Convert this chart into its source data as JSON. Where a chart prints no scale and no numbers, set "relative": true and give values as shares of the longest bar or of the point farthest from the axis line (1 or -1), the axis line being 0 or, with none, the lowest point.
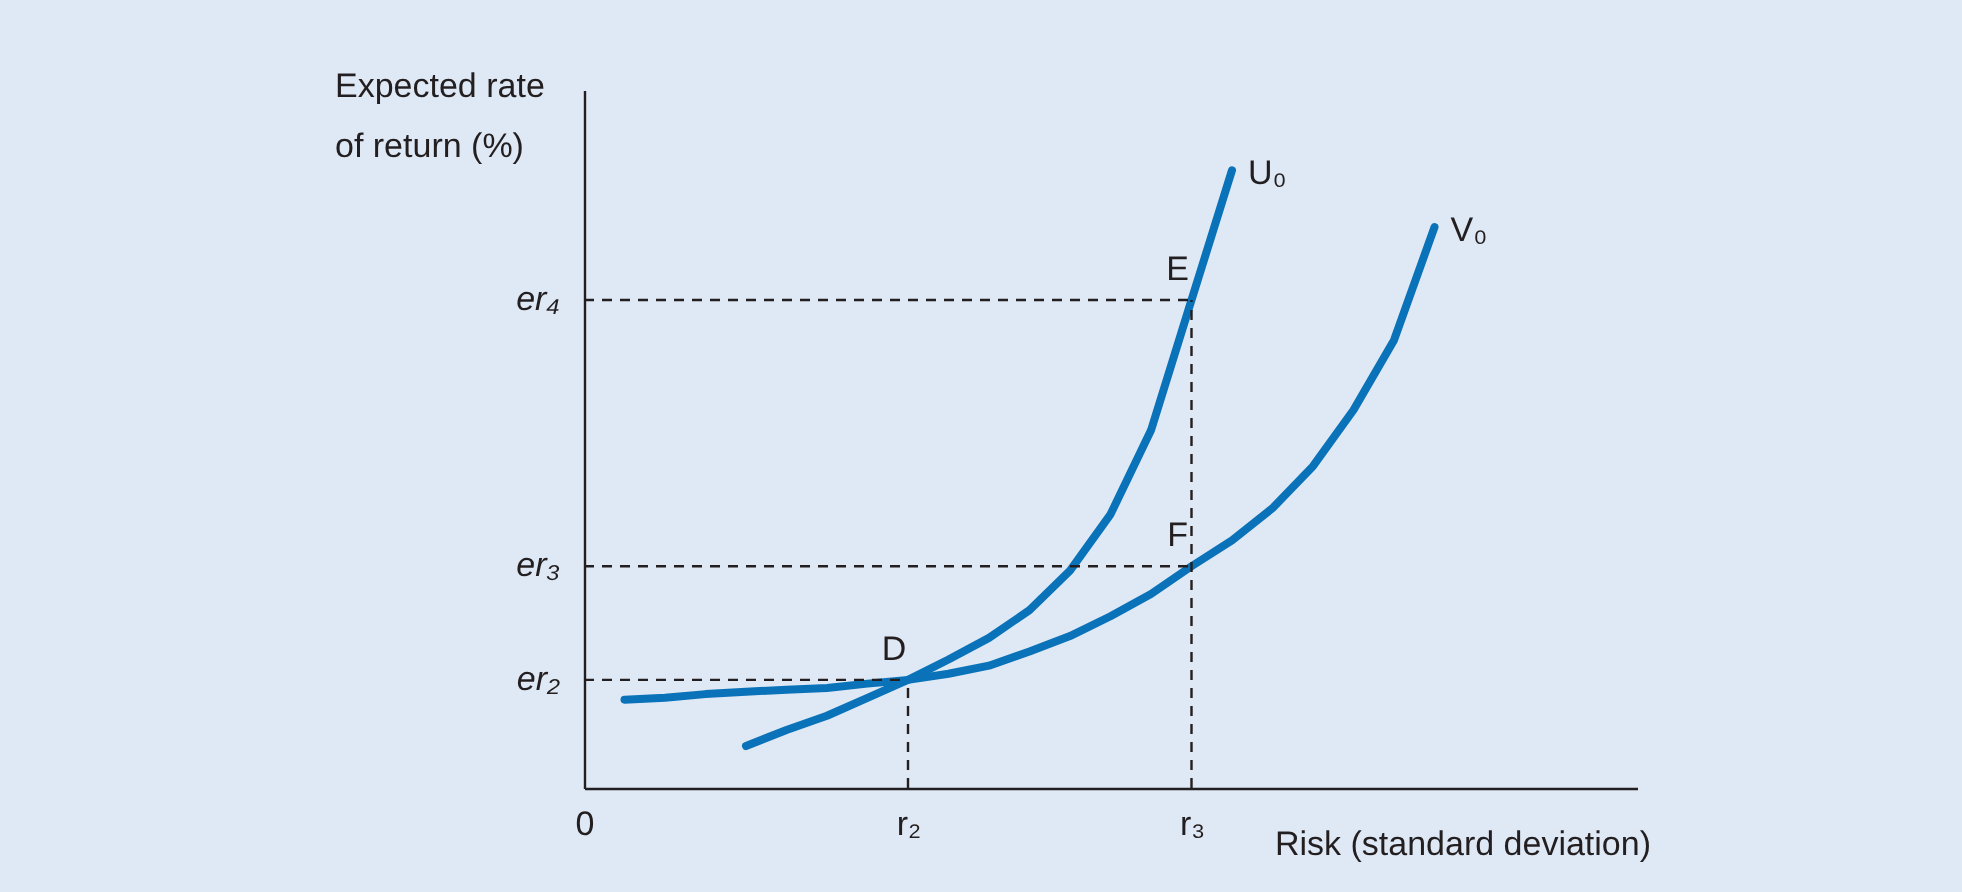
{
  "chart_data": {
    "type": "line",
    "relative": true,
    "xlabel": "Risk (standard deviation)",
    "ylabel": "Expected rate\nof return (%)",
    "categories": [
      "0",
      null,
      null,
      null,
      null,
      null,
      null,
      null,
      "r₂",
      null,
      null,
      null,
      null,
      null,
      null,
      "r₃",
      null,
      null,
      null,
      null,
      null,
      null,
      null,
      null,
      null,
      null,
      null
    ],
    "series": [
      {
        "name": "U₀",
        "color": "#0a72b8",
        "values": [
          null,
          null,
          null,
          null,
          0.068,
          0.094,
          0.117,
          0.146,
          0.175,
          0.208,
          0.243,
          0.288,
          0.352,
          0.443,
          0.579,
          0.79,
          1,
          null,
          null,
          null,
          null,
          null,
          null,
          null,
          null,
          null,
          null
        ]
      },
      {
        "name": "V₀",
        "color": "#0a72b8",
        "values": [
          null,
          0.143,
          0.146,
          0.152,
          0.156,
          0.159,
          0.162,
          0.169,
          0.175,
          0.185,
          0.198,
          0.221,
          0.246,
          0.278,
          0.314,
          0.359,
          0.401,
          0.453,
          0.521,
          0.612,
          0.725,
          0.908,
          null,
          null,
          null,
          null,
          null
        ]
      }
    ],
    "ref_lines": [
      {
        "axis": "y",
        "value": 0.175,
        "label": "er₂",
        "color": "#231f20",
        "line_style": "dashed"
      },
      {
        "axis": "y",
        "value": 0.359,
        "label": "er₃",
        "color": "#231f20",
        "line_style": "dashed"
      },
      {
        "axis": "y",
        "value": 0.79,
        "label": "er₄",
        "color": "#231f20",
        "line_style": "dashed"
      },
      {
        "axis": "x",
        "value": "r₂",
        "color": "#231f20",
        "line_style": "dashed"
      },
      {
        "axis": "x",
        "value": "r₃",
        "color": "#231f20",
        "line_style": "dashed"
      }
    ],
    "annotations": [
      {
        "text": "D",
        "x": "r₂",
        "y": 0.175
      },
      {
        "text": "E",
        "x": "r₃",
        "y": 0.79
      },
      {
        "text": "F",
        "x": "r₃",
        "y": 0.359
      }
    ]
  }
}
